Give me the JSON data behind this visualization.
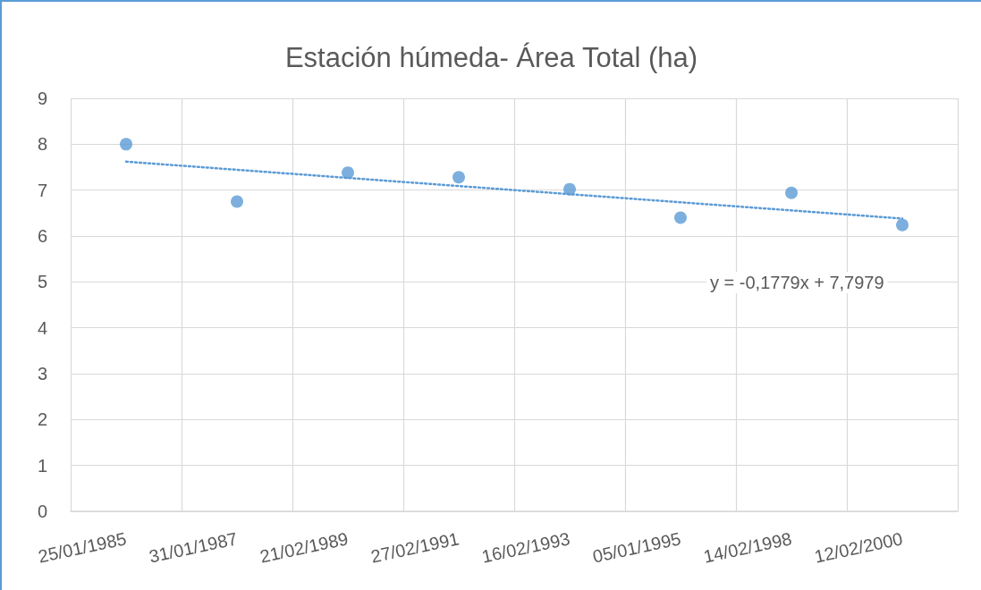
{
  "chart_data": {
    "type": "scatter",
    "title": "Estación húmeda- Área Total (ha)",
    "categories": [
      "25/01/1985",
      "31/01/1987",
      "21/02/1989",
      "27/02/1991",
      "16/02/1993",
      "05/01/1995",
      "14/02/1998",
      "12/02/2000"
    ],
    "series": [
      {
        "color": "#5b9bd5",
        "values": [
          8.0,
          6.75,
          7.38,
          7.28,
          7.02,
          6.4,
          6.94,
          6.24
        ]
      },
      {
        "type": "line",
        "x": [
          "25/01/1985",
          "12/02/2000"
        ],
        "values": [
          7.62,
          6.38
        ],
        "color": "#5b9bd5",
        "line_style": "dotted",
        "marker": "none"
      }
    ],
    "ylim": [
      0,
      9
    ],
    "yticks": [
      0,
      1,
      2,
      3,
      4,
      5,
      6,
      7,
      8,
      9
    ],
    "grid": true,
    "marker": "circle",
    "annotations": [
      "y = -0,1779x + 7,7979"
    ]
  }
}
